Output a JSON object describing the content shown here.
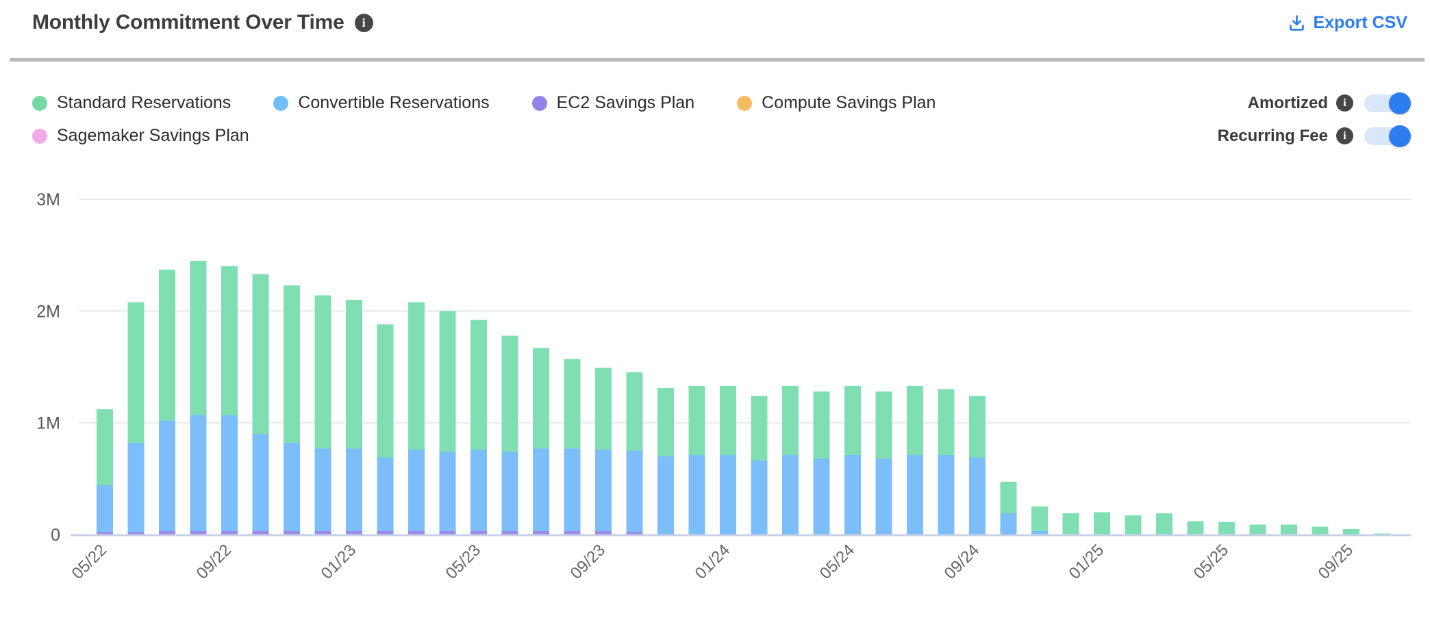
{
  "header": {
    "title": "Monthly Commitment Over Time",
    "info_icon": "i",
    "export_label": "Export CSV",
    "export_color": "#2c7df2"
  },
  "legend": {
    "rows": [
      [
        {
          "label": "Standard Reservations",
          "color": "#76d9a4"
        },
        {
          "label": "Convertible Reservations",
          "color": "#72bdf8"
        },
        {
          "label": "EC2 Savings Plan",
          "color": "#9183e8"
        },
        {
          "label": "Compute Savings Plan",
          "color": "#f6bc62"
        }
      ],
      [
        {
          "label": "Sagemaker Savings Plan",
          "color": "#f2abe8"
        }
      ]
    ]
  },
  "controls": {
    "toggles": [
      {
        "label": "Amortized",
        "info_icon": "i",
        "state": "on"
      },
      {
        "label": "Recurring Fee",
        "info_icon": "i",
        "state": "on"
      }
    ],
    "toggle_on_color": "#2b7df0",
    "toggle_track_color": "#d9e7fa"
  },
  "chart_data": {
    "type": "bar",
    "stacked": true,
    "title": "Monthly Commitment Over Time",
    "xlabel": "",
    "ylabel": "",
    "ylim": [
      0,
      3000000
    ],
    "y_ticks": [
      "0",
      "1M",
      "2M",
      "3M"
    ],
    "grid": "horizontal",
    "legend_position": "top-left",
    "values_unit": "millions",
    "categories": [
      "05/22",
      "06/22",
      "07/22",
      "08/22",
      "09/22",
      "10/22",
      "11/22",
      "12/22",
      "01/23",
      "02/23",
      "03/23",
      "04/23",
      "05/23",
      "06/23",
      "07/23",
      "08/23",
      "09/23",
      "10/23",
      "11/23",
      "12/23",
      "01/24",
      "02/24",
      "03/24",
      "04/24",
      "05/24",
      "06/24",
      "07/24",
      "08/24",
      "09/24",
      "10/24",
      "11/24",
      "12/24",
      "01/25",
      "02/25",
      "03/25",
      "04/25",
      "05/25",
      "06/25",
      "07/25",
      "08/25",
      "09/25",
      "10/25"
    ],
    "x_tick_labels_shown": [
      "05/22",
      "09/22",
      "01/23",
      "05/23",
      "09/23",
      "01/24",
      "05/24",
      "09/24",
      "01/25",
      "05/25",
      "09/25"
    ],
    "x_tick_every": 4,
    "stack_order_bottom_to_top": [
      "EC2 Savings Plan",
      "Convertible Reservations",
      "Standard Reservations"
    ],
    "series": [
      {
        "name": "Standard Reservations",
        "color": "#7fdfb2",
        "values": [
          0.68,
          1.26,
          1.35,
          1.38,
          1.33,
          1.43,
          1.41,
          1.37,
          1.33,
          1.19,
          1.32,
          1.26,
          1.16,
          1.04,
          0.9,
          0.8,
          0.73,
          0.7,
          0.61,
          0.62,
          0.62,
          0.58,
          0.62,
          0.6,
          0.62,
          0.6,
          0.62,
          0.59,
          0.55,
          0.28,
          0.22,
          0.19,
          0.2,
          0.17,
          0.19,
          0.12,
          0.11,
          0.09,
          0.09,
          0.07,
          0.05,
          0.01
        ]
      },
      {
        "name": "Convertible Reservations",
        "color": "#7cbef9",
        "values": [
          0.42,
          0.8,
          0.99,
          1.04,
          1.04,
          0.87,
          0.79,
          0.74,
          0.74,
          0.66,
          0.73,
          0.71,
          0.73,
          0.71,
          0.74,
          0.74,
          0.73,
          0.73,
          0.7,
          0.71,
          0.71,
          0.66,
          0.71,
          0.68,
          0.71,
          0.68,
          0.71,
          0.71,
          0.69,
          0.19,
          0.03,
          0,
          0,
          0,
          0,
          0,
          0,
          0,
          0,
          0,
          0,
          0
        ]
      },
      {
        "name": "EC2 Savings Plan",
        "color": "#9c8be8",
        "values": [
          0.02,
          0.02,
          0.03,
          0.03,
          0.03,
          0.03,
          0.03,
          0.03,
          0.03,
          0.03,
          0.03,
          0.03,
          0.03,
          0.03,
          0.03,
          0.03,
          0.03,
          0.02,
          0,
          0,
          0,
          0,
          0,
          0,
          0,
          0,
          0,
          0,
          0,
          0,
          0,
          0,
          0,
          0,
          0,
          0,
          0,
          0,
          0,
          0,
          0,
          0
        ]
      },
      {
        "name": "Compute Savings Plan",
        "color": "#f6bc62",
        "values": [
          0,
          0,
          0,
          0,
          0,
          0,
          0,
          0,
          0,
          0,
          0,
          0,
          0,
          0,
          0,
          0,
          0,
          0,
          0,
          0,
          0,
          0,
          0,
          0,
          0,
          0,
          0,
          0,
          0,
          0,
          0,
          0,
          0,
          0,
          0,
          0,
          0,
          0,
          0,
          0,
          0,
          0
        ]
      },
      {
        "name": "Sagemaker Savings Plan",
        "color": "#f2abe8",
        "values": [
          0,
          0,
          0,
          0,
          0,
          0,
          0,
          0,
          0,
          0,
          0,
          0,
          0,
          0,
          0,
          0,
          0,
          0,
          0,
          0,
          0,
          0,
          0,
          0,
          0,
          0,
          0,
          0,
          0,
          0,
          0,
          0,
          0,
          0,
          0,
          0,
          0,
          0,
          0,
          0,
          0,
          0
        ]
      }
    ]
  }
}
